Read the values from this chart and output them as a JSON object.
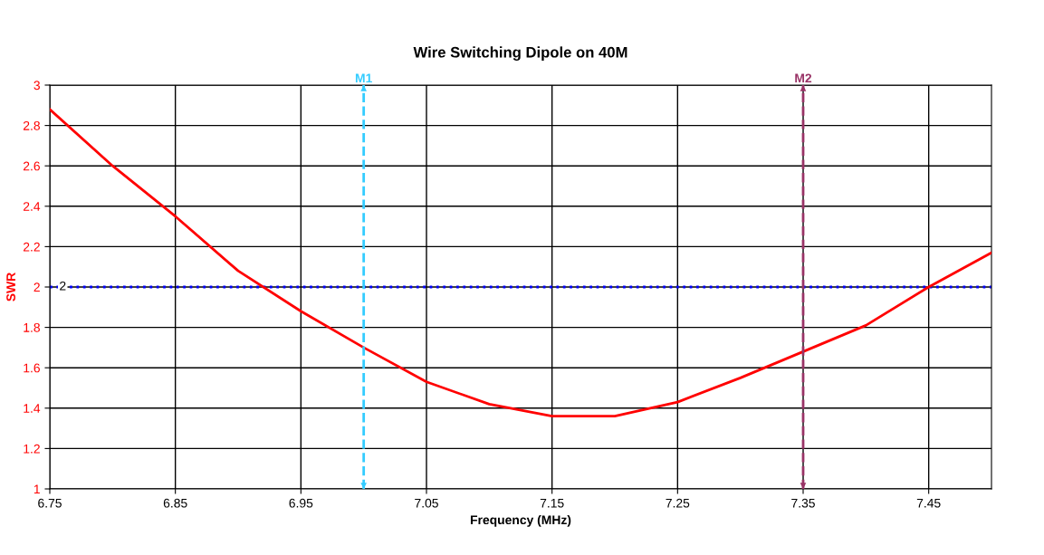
{
  "chart_data": {
    "type": "line",
    "title": "Wire Switching Dipole on 40M",
    "xlabel": "Frequency (MHz)",
    "ylabel": "SWR",
    "x": [
      6.75,
      6.8,
      6.85,
      6.9,
      6.95,
      7.0,
      7.05,
      7.1,
      7.15,
      7.2,
      7.25,
      7.3,
      7.35,
      7.4,
      7.45,
      7.5
    ],
    "series": [
      {
        "color": "#ff0000",
        "values": [
          2.88,
          2.6,
          2.35,
          2.08,
          1.88,
          1.7,
          1.53,
          1.42,
          1.36,
          1.36,
          1.43,
          1.55,
          1.68,
          1.81,
          2.0,
          2.17
        ]
      }
    ],
    "xlim": [
      6.75,
      7.5
    ],
    "xticks": [
      6.75,
      6.85,
      6.95,
      7.05,
      7.15,
      7.25,
      7.35,
      7.45
    ],
    "ylim": [
      1,
      3
    ],
    "yticks": [
      1,
      1.2,
      1.4,
      1.6,
      1.8,
      2,
      2.2,
      2.4,
      2.6,
      2.8,
      3
    ],
    "ref_lines": [
      {
        "axis": "y",
        "value": 2,
        "label": "2",
        "color": "#0000ff",
        "line_style": "dotted"
      },
      {
        "axis": "x",
        "value": 7.0,
        "label": "M1",
        "color": "#33ccff",
        "line_style": "dashed"
      },
      {
        "axis": "x",
        "value": 7.35,
        "label": "M2",
        "color": "#993366",
        "line_style": "dashed"
      }
    ],
    "grid": true,
    "marker": "none",
    "line_style": "solid",
    "legend": false
  }
}
